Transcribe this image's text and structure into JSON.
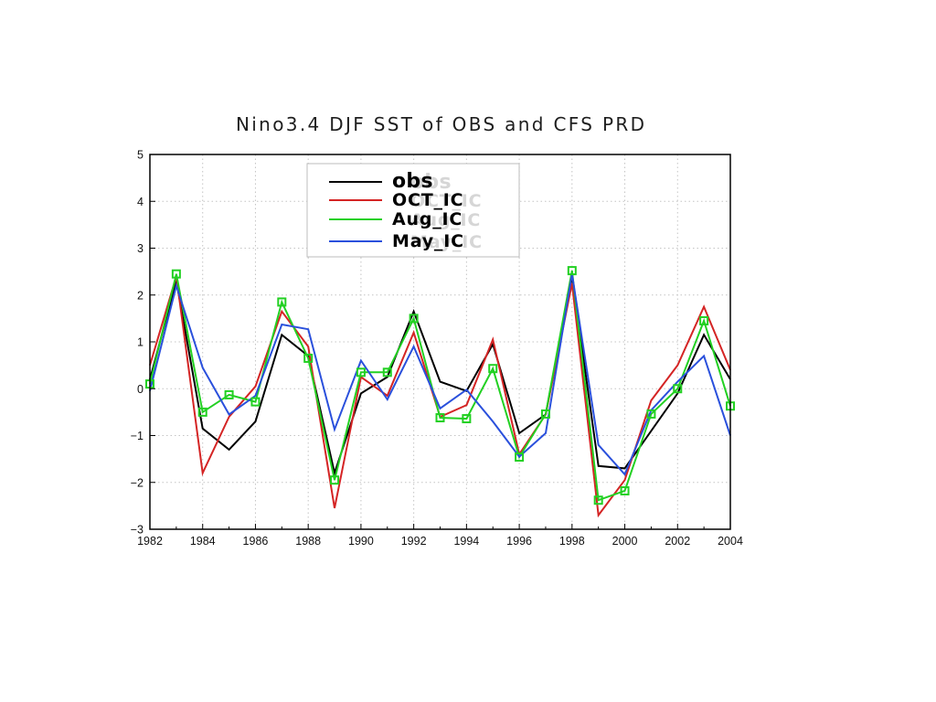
{
  "chart_data": {
    "type": "line",
    "title": "Nino3.4 DJF SST of OBS and CFS PRD",
    "x": [
      1982,
      1983,
      1984,
      1985,
      1986,
      1987,
      1988,
      1989,
      1990,
      1991,
      1992,
      1993,
      1994,
      1995,
      1996,
      1997,
      1998,
      1999,
      2000,
      2001,
      2002,
      2003,
      2004
    ],
    "x_tick_labels": [
      "1982",
      "1984",
      "1986",
      "1988",
      "1990",
      "1992",
      "1994",
      "1996",
      "1998",
      "2000",
      "2002",
      "2004"
    ],
    "y_tick_labels": [
      "5",
      "4",
      "3",
      "2",
      "1",
      "0",
      "−1",
      "−2",
      "−3"
    ],
    "xlim": [
      1982,
      2004
    ],
    "ylim": [
      -3,
      5
    ],
    "grid": true,
    "legend_position": "top-center",
    "series": [
      {
        "name": "obs",
        "color": "#000000",
        "values": [
          0.2,
          2.3,
          -0.85,
          -1.3,
          -0.7,
          1.15,
          0.7,
          -1.8,
          -0.1,
          0.25,
          1.65,
          0.15,
          -0.05,
          0.95,
          -0.95,
          -0.55,
          2.4,
          -1.65,
          -1.7,
          -0.9,
          -0.1,
          1.15,
          0.2
        ]
      },
      {
        "name": "OCT_IC",
        "color": "#d42424",
        "values": [
          0.5,
          2.4,
          -1.8,
          -0.6,
          0.05,
          1.65,
          0.9,
          -2.55,
          0.25,
          -0.15,
          1.2,
          -0.6,
          -0.35,
          1.05,
          -1.4,
          -0.55,
          2.25,
          -2.7,
          -1.95,
          -0.25,
          0.5,
          1.75,
          0.4
        ]
      },
      {
        "name": "Aug_IC",
        "color": "#22d022",
        "marker": "square",
        "values": [
          0.1,
          2.45,
          -0.5,
          -0.13,
          -0.28,
          1.85,
          0.65,
          -1.95,
          0.35,
          0.35,
          1.5,
          -0.62,
          -0.64,
          0.43,
          -1.46,
          -0.54,
          2.52,
          -2.38,
          -2.18,
          -0.54,
          0.0,
          1.45,
          -0.37
        ]
      },
      {
        "name": "May_IC",
        "color": "#2a50dc",
        "values": [
          -0.05,
          2.2,
          0.45,
          -0.55,
          -0.15,
          1.37,
          1.27,
          -0.87,
          0.6,
          -0.23,
          0.9,
          -0.42,
          -0.02,
          -0.7,
          -1.45,
          -0.95,
          2.45,
          -1.2,
          -1.83,
          -0.46,
          0.15,
          0.7,
          -1.0
        ]
      }
    ]
  }
}
